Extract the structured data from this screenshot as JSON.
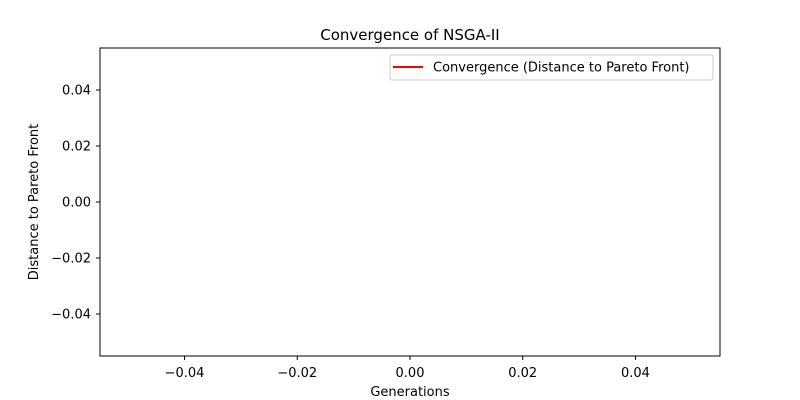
{
  "chart_data": {
    "type": "line",
    "title": "Convergence of NSGA-II",
    "xlabel": "Generations",
    "ylabel": "Distance to Pareto Front",
    "xlim": [
      -0.055,
      0.055
    ],
    "ylim": [
      -0.055,
      0.055
    ],
    "x_ticks": [
      -0.04,
      -0.02,
      0.0,
      0.02,
      0.04
    ],
    "y_ticks": [
      -0.04,
      -0.02,
      0.0,
      0.02,
      0.04
    ],
    "x_tick_labels": [
      "−0.04",
      "−0.02",
      "0.00",
      "0.02",
      "0.04"
    ],
    "y_tick_labels": [
      "−0.04",
      "−0.02",
      "0.00",
      "0.02",
      "0.04"
    ],
    "grid": false,
    "legend_position": "top-right",
    "series": [
      {
        "name": "Convergence (Distance to Pareto Front)",
        "color": "#ff0000",
        "x": [],
        "y": []
      }
    ]
  }
}
